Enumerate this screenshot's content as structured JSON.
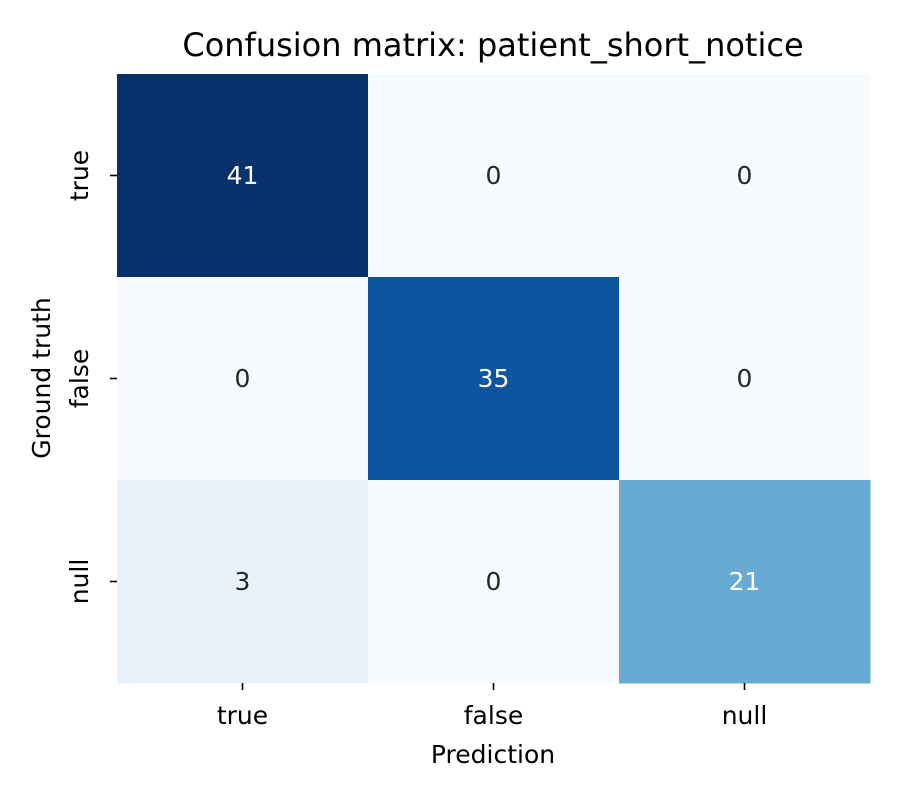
{
  "chart_data": {
    "type": "heatmap",
    "title": "Confusion matrix: patient_short_notice",
    "xlabel": "Prediction",
    "ylabel": "Ground truth",
    "x_categories": [
      "true",
      "false",
      "null"
    ],
    "y_categories": [
      "true",
      "false",
      "null"
    ],
    "values": [
      [
        41,
        0,
        0
      ],
      [
        0,
        35,
        0
      ],
      [
        3,
        0,
        21
      ]
    ],
    "colormap": "Blues",
    "vmin": 0,
    "vmax": 41,
    "colorbar": false,
    "grid": false
  }
}
